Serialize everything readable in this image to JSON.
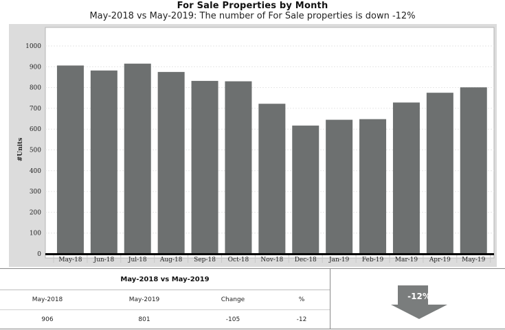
{
  "chart_data": {
    "type": "bar",
    "title": "For Sale Properties by Month",
    "subtitle": "May-2018 vs May-2019: The number of For Sale properties is down -12%",
    "ylabel": "#Units",
    "xlabel": "",
    "ylim": [
      0,
      1000
    ],
    "yticks": [
      0,
      100,
      200,
      300,
      400,
      500,
      600,
      700,
      800,
      900,
      1000
    ],
    "categories": [
      "May-18",
      "Jun-18",
      "Jul-18",
      "Aug-18",
      "Sep-18",
      "Oct-18",
      "Nov-18",
      "Dec-18",
      "Jan-19",
      "Feb-19",
      "Mar-19",
      "Apr-19",
      "May-19"
    ],
    "values": [
      906,
      882,
      915,
      875,
      832,
      830,
      722,
      617,
      645,
      648,
      728,
      775,
      801
    ],
    "grid": true,
    "colors": {
      "bar": "#6d7070",
      "frame": "#dcdcdc",
      "plot_bg": "#ffffff",
      "baseline": "#000000"
    }
  },
  "summary": {
    "heading": "May-2018 vs May-2019",
    "columns": [
      "May-2018",
      "May-2019",
      "Change",
      "%"
    ],
    "values": [
      "906",
      "801",
      "-105",
      "-12"
    ],
    "badge": "-12%",
    "badge_color": "#7a7d7d"
  }
}
